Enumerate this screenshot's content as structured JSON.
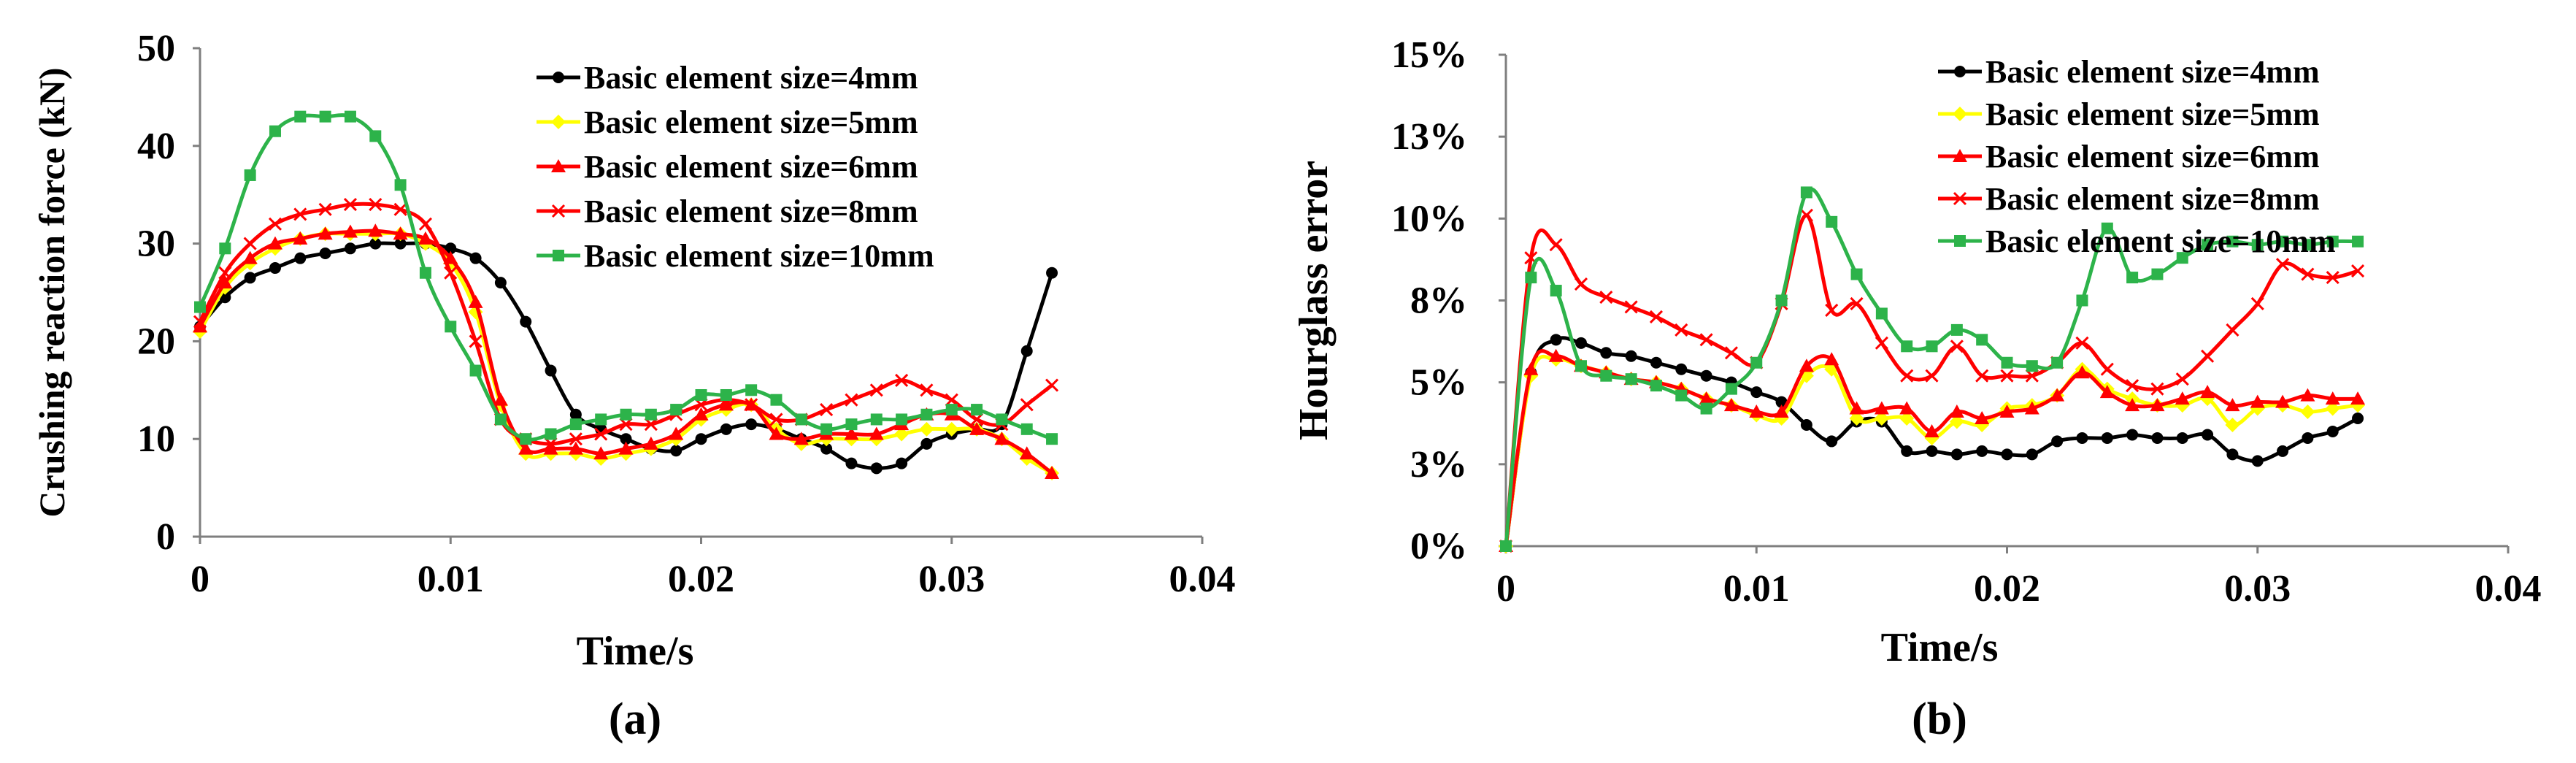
{
  "chart_data": [
    {
      "type": "line",
      "panel_label": "(a)",
      "xlabel": "Time/s",
      "ylabel": "Crushing reaction force  (kN)",
      "xlim": [
        0,
        0.04
      ],
      "ylim": [
        0,
        50
      ],
      "x_ticks": [
        0,
        0.01,
        0.02,
        0.03,
        0.04
      ],
      "x_tick_labels": [
        "0",
        "0.01",
        "0.02",
        "0.03",
        "0.04"
      ],
      "y_ticks": [
        0,
        10,
        20,
        30,
        40,
        50
      ],
      "y_tick_labels": [
        "0",
        "10",
        "20",
        "30",
        "40",
        "50"
      ],
      "legend_position": "top-right",
      "series": [
        {
          "name": "Basic element size=4mm",
          "color": "#000000",
          "marker": "circle",
          "x": [
            0,
            0.001,
            0.002,
            0.003,
            0.004,
            0.005,
            0.006,
            0.007,
            0.008,
            0.009,
            0.01,
            0.011,
            0.012,
            0.013,
            0.014,
            0.015,
            0.016,
            0.017,
            0.018,
            0.019,
            0.02,
            0.021,
            0.022,
            0.023,
            0.024,
            0.025,
            0.026,
            0.027,
            0.028,
            0.029,
            0.03,
            0.031,
            0.032,
            0.033,
            0.034
          ],
          "y": [
            21.5,
            24.5,
            26.5,
            27.5,
            28.5,
            29,
            29.5,
            30,
            30,
            30,
            29.5,
            28.5,
            26,
            22,
            17,
            12.5,
            11,
            10,
            9,
            8.8,
            10,
            11,
            11.5,
            11,
            10,
            9,
            7.5,
            7,
            7.5,
            9.5,
            10.5,
            11,
            11.5,
            19,
            27
          ]
        },
        {
          "name": "Basic element size=5mm",
          "color": "#ffff00",
          "marker": "diamond",
          "x": [
            0,
            0.001,
            0.002,
            0.003,
            0.004,
            0.005,
            0.006,
            0.007,
            0.008,
            0.009,
            0.01,
            0.011,
            0.012,
            0.013,
            0.014,
            0.015,
            0.016,
            0.017,
            0.018,
            0.019,
            0.02,
            0.021,
            0.022,
            0.023,
            0.024,
            0.025,
            0.026,
            0.027,
            0.028,
            0.029,
            0.03,
            0.031,
            0.032,
            0.033,
            0.034
          ],
          "y": [
            21,
            25.5,
            28,
            29.5,
            30.5,
            31,
            31,
            31,
            31,
            30,
            28,
            23,
            13.5,
            8.5,
            8.5,
            8.5,
            8,
            8.5,
            9,
            10,
            12,
            13,
            13.5,
            11,
            9.5,
            10,
            10,
            10,
            10.5,
            11,
            11,
            11,
            10,
            8,
            6.5
          ]
        },
        {
          "name": "Basic element size=6mm",
          "color": "#ff0000",
          "marker": "triangle",
          "x": [
            0,
            0.001,
            0.002,
            0.003,
            0.004,
            0.005,
            0.006,
            0.007,
            0.008,
            0.009,
            0.01,
            0.011,
            0.012,
            0.013,
            0.014,
            0.015,
            0.016,
            0.017,
            0.018,
            0.019,
            0.02,
            0.021,
            0.022,
            0.023,
            0.024,
            0.025,
            0.026,
            0.027,
            0.028,
            0.029,
            0.03,
            0.031,
            0.032,
            0.033,
            0.034
          ],
          "y": [
            21.5,
            26,
            28.5,
            30,
            30.5,
            31,
            31.2,
            31.3,
            31,
            30.5,
            28.5,
            24,
            14,
            9,
            9,
            9,
            8.5,
            9,
            9.5,
            10.5,
            12.5,
            13.5,
            13.5,
            10.5,
            10,
            10.5,
            10.5,
            10.5,
            11.5,
            12.5,
            12.5,
            11,
            10,
            8.5,
            6.5
          ]
        },
        {
          "name": "Basic element size=8mm",
          "color": "#ff0000",
          "marker": "x",
          "x": [
            0,
            0.001,
            0.002,
            0.003,
            0.004,
            0.005,
            0.006,
            0.007,
            0.008,
            0.009,
            0.01,
            0.011,
            0.012,
            0.013,
            0.014,
            0.015,
            0.016,
            0.017,
            0.018,
            0.019,
            0.02,
            0.021,
            0.022,
            0.023,
            0.024,
            0.025,
            0.026,
            0.027,
            0.028,
            0.029,
            0.03,
            0.031,
            0.032,
            0.033,
            0.034
          ],
          "y": [
            22,
            27,
            30,
            32,
            33,
            33.5,
            34,
            34,
            33.5,
            32,
            27,
            20,
            12,
            10,
            9.5,
            10,
            10.5,
            11.5,
            11.5,
            12.5,
            13.5,
            14,
            13.5,
            12,
            12,
            13,
            14,
            15,
            16,
            15,
            14,
            12,
            11.5,
            13.5,
            15.5
          ]
        },
        {
          "name": "Basic element size=10mm",
          "color": "#2db34a",
          "marker": "square",
          "x": [
            0,
            0.001,
            0.002,
            0.003,
            0.004,
            0.005,
            0.006,
            0.007,
            0.008,
            0.009,
            0.01,
            0.011,
            0.012,
            0.013,
            0.014,
            0.015,
            0.016,
            0.017,
            0.018,
            0.019,
            0.02,
            0.021,
            0.022,
            0.023,
            0.024,
            0.025,
            0.026,
            0.027,
            0.028,
            0.029,
            0.03,
            0.031,
            0.032,
            0.033,
            0.034
          ],
          "y": [
            23.5,
            29.5,
            37,
            41.5,
            43,
            43,
            43,
            41,
            36,
            27,
            21.5,
            17,
            12,
            10,
            10.5,
            11.5,
            12,
            12.5,
            12.5,
            13,
            14.5,
            14.5,
            15,
            14,
            12,
            11,
            11.5,
            12,
            12,
            12.5,
            13,
            13,
            12,
            11,
            10
          ]
        }
      ]
    },
    {
      "type": "line",
      "panel_label": "(b)",
      "xlabel": "Time/s",
      "ylabel": "Hourglass error",
      "xlim": [
        0,
        0.04
      ],
      "ylim": [
        0,
        15
      ],
      "x_ticks": [
        0,
        0.01,
        0.02,
        0.03,
        0.04
      ],
      "x_tick_labels": [
        "0",
        "0.01",
        "0.02",
        "0.03",
        "0.04"
      ],
      "y_ticks": [
        0,
        2.5,
        5,
        7.5,
        10,
        12.5,
        15
      ],
      "y_tick_labels": [
        "0%",
        "3%",
        "5%",
        "8%",
        "10%",
        "13%",
        "15%"
      ],
      "y_unit": "%",
      "legend_position": "top-right",
      "series": [
        {
          "name": "Basic element size=4mm",
          "color": "#000000",
          "marker": "circle",
          "x": [
            0,
            0.001,
            0.002,
            0.003,
            0.004,
            0.005,
            0.006,
            0.007,
            0.008,
            0.009,
            0.01,
            0.011,
            0.012,
            0.013,
            0.014,
            0.015,
            0.016,
            0.017,
            0.018,
            0.019,
            0.02,
            0.021,
            0.022,
            0.023,
            0.024,
            0.025,
            0.026,
            0.027,
            0.028,
            0.029,
            0.03,
            0.031,
            0.032,
            0.033,
            0.034
          ],
          "y": [
            0,
            5.3,
            6.3,
            6.2,
            5.9,
            5.8,
            5.6,
            5.4,
            5.2,
            5,
            4.7,
            4.4,
            3.7,
            3.2,
            3.8,
            3.8,
            2.9,
            2.9,
            2.8,
            2.9,
            2.8,
            2.8,
            3.2,
            3.3,
            3.3,
            3.4,
            3.3,
            3.3,
            3.4,
            2.8,
            2.6,
            2.9,
            3.3,
            3.5,
            3.9
          ]
        },
        {
          "name": "Basic element size=5mm",
          "color": "#ffff00",
          "marker": "diamond",
          "x": [
            0,
            0.001,
            0.002,
            0.003,
            0.004,
            0.005,
            0.006,
            0.007,
            0.008,
            0.009,
            0.01,
            0.011,
            0.012,
            0.013,
            0.014,
            0.015,
            0.016,
            0.017,
            0.018,
            0.019,
            0.02,
            0.021,
            0.022,
            0.023,
            0.024,
            0.025,
            0.026,
            0.027,
            0.028,
            0.029,
            0.03,
            0.031,
            0.032,
            0.033,
            0.034
          ],
          "y": [
            0,
            5.2,
            5.7,
            5.5,
            5.3,
            5.1,
            5,
            4.8,
            4.5,
            4.3,
            4,
            3.9,
            5.2,
            5.4,
            3.9,
            3.9,
            3.9,
            3.3,
            3.8,
            3.7,
            4.2,
            4.3,
            4.6,
            5.4,
            4.8,
            4.5,
            4.3,
            4.3,
            4.5,
            3.7,
            4.2,
            4.3,
            4.1,
            4.2,
            4.3
          ]
        },
        {
          "name": "Basic element size=6mm",
          "color": "#ff0000",
          "marker": "triangle",
          "x": [
            0,
            0.001,
            0.002,
            0.003,
            0.004,
            0.005,
            0.006,
            0.007,
            0.008,
            0.009,
            0.01,
            0.011,
            0.012,
            0.013,
            0.014,
            0.015,
            0.016,
            0.017,
            0.018,
            0.019,
            0.02,
            0.021,
            0.022,
            0.023,
            0.024,
            0.025,
            0.026,
            0.027,
            0.028,
            0.029,
            0.03,
            0.031,
            0.032,
            0.033,
            0.034
          ],
          "y": [
            0,
            5.4,
            5.8,
            5.5,
            5.3,
            5.1,
            5,
            4.8,
            4.5,
            4.3,
            4.1,
            4.1,
            5.5,
            5.7,
            4.2,
            4.2,
            4.2,
            3.5,
            4.1,
            3.9,
            4.1,
            4.2,
            4.6,
            5.3,
            4.7,
            4.3,
            4.3,
            4.5,
            4.7,
            4.3,
            4.4,
            4.4,
            4.6,
            4.5,
            4.5
          ]
        },
        {
          "name": "Basic element size=8mm",
          "color": "#ff0000",
          "marker": "x",
          "x": [
            0,
            0.001,
            0.002,
            0.003,
            0.004,
            0.005,
            0.006,
            0.007,
            0.008,
            0.009,
            0.01,
            0.011,
            0.012,
            0.013,
            0.014,
            0.015,
            0.016,
            0.017,
            0.018,
            0.019,
            0.02,
            0.021,
            0.022,
            0.023,
            0.024,
            0.025,
            0.026,
            0.027,
            0.028,
            0.029,
            0.03,
            0.031,
            0.032,
            0.033,
            0.034
          ],
          "y": [
            0,
            8.8,
            9.2,
            8,
            7.6,
            7.3,
            7,
            6.6,
            6.3,
            5.9,
            5.6,
            7.4,
            10.1,
            7.2,
            7.4,
            6.2,
            5.2,
            5.2,
            6.1,
            5.2,
            5.2,
            5.2,
            5.6,
            6.2,
            5.4,
            4.9,
            4.8,
            5.1,
            5.8,
            6.6,
            7.4,
            8.6,
            8.3,
            8.2,
            8.4
          ]
        },
        {
          "name": "Basic element size=10mm",
          "color": "#2db34a",
          "marker": "square",
          "x": [
            0,
            0.001,
            0.002,
            0.003,
            0.004,
            0.005,
            0.006,
            0.007,
            0.008,
            0.009,
            0.01,
            0.011,
            0.012,
            0.013,
            0.014,
            0.015,
            0.016,
            0.017,
            0.018,
            0.019,
            0.02,
            0.021,
            0.022,
            0.023,
            0.024,
            0.025,
            0.026,
            0.027,
            0.028,
            0.029,
            0.03,
            0.031,
            0.032,
            0.033,
            0.034
          ],
          "y": [
            0,
            8.2,
            7.8,
            5.5,
            5.2,
            5.1,
            4.9,
            4.6,
            4.2,
            4.8,
            5.6,
            7.5,
            10.8,
            9.9,
            8.3,
            7.1,
            6.1,
            6.1,
            6.6,
            6.3,
            5.6,
            5.5,
            5.6,
            7.5,
            9.7,
            8.2,
            8.3,
            8.8,
            9.2,
            9.3,
            9.2,
            9.3,
            9.2,
            9.3,
            9.3
          ]
        }
      ]
    }
  ]
}
